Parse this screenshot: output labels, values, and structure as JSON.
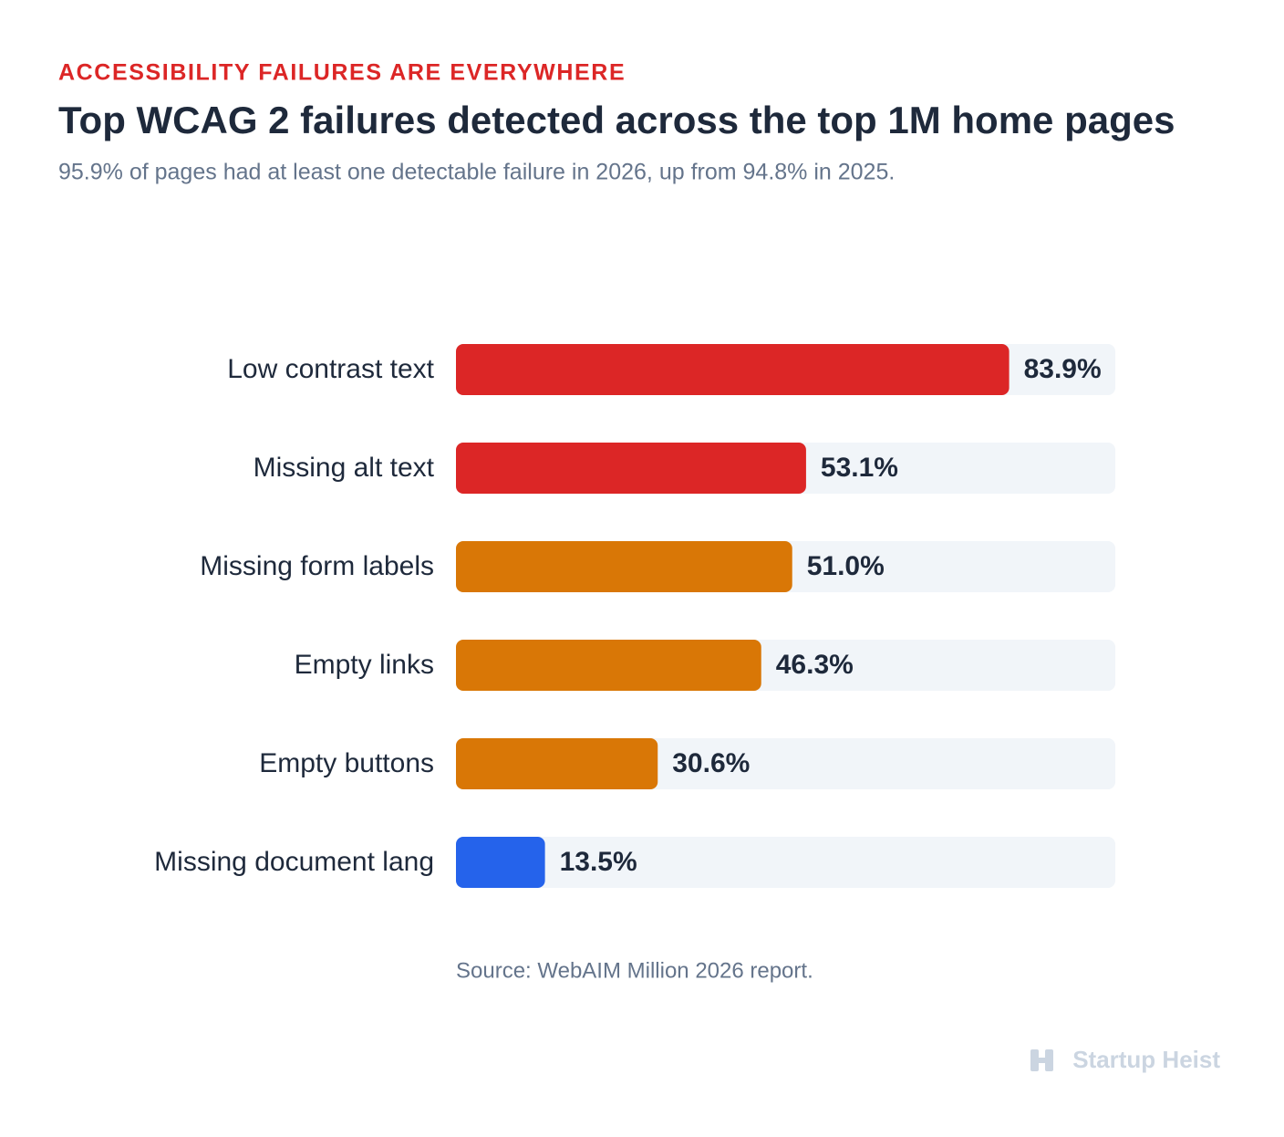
{
  "chart_data": {
    "type": "bar",
    "orientation": "horizontal",
    "kicker": "ACCESSIBILITY FAILURES ARE EVERYWHERE",
    "title": "Top WCAG 2 failures detected across the top 1M home pages",
    "subtitle": "95.9% of pages had at least one detectable failure in 2026, up from 94.8% in 2025.",
    "categories": [
      "Low contrast text",
      "Missing alt text",
      "Missing form labels",
      "Empty links",
      "Empty buttons",
      "Missing document lang"
    ],
    "values": [
      83.9,
      53.1,
      51.0,
      46.3,
      30.6,
      13.5
    ],
    "value_labels": [
      "83.9%",
      "53.1%",
      "51.0%",
      "46.3%",
      "30.6%",
      "13.5%"
    ],
    "colors": [
      "#dc2626",
      "#dc2626",
      "#d97706",
      "#d97706",
      "#d97706",
      "#2563eb"
    ],
    "xlim": [
      0,
      100
    ],
    "source": "Source: WebAIM Million 2026 report.",
    "brand": "Startup Heist"
  }
}
